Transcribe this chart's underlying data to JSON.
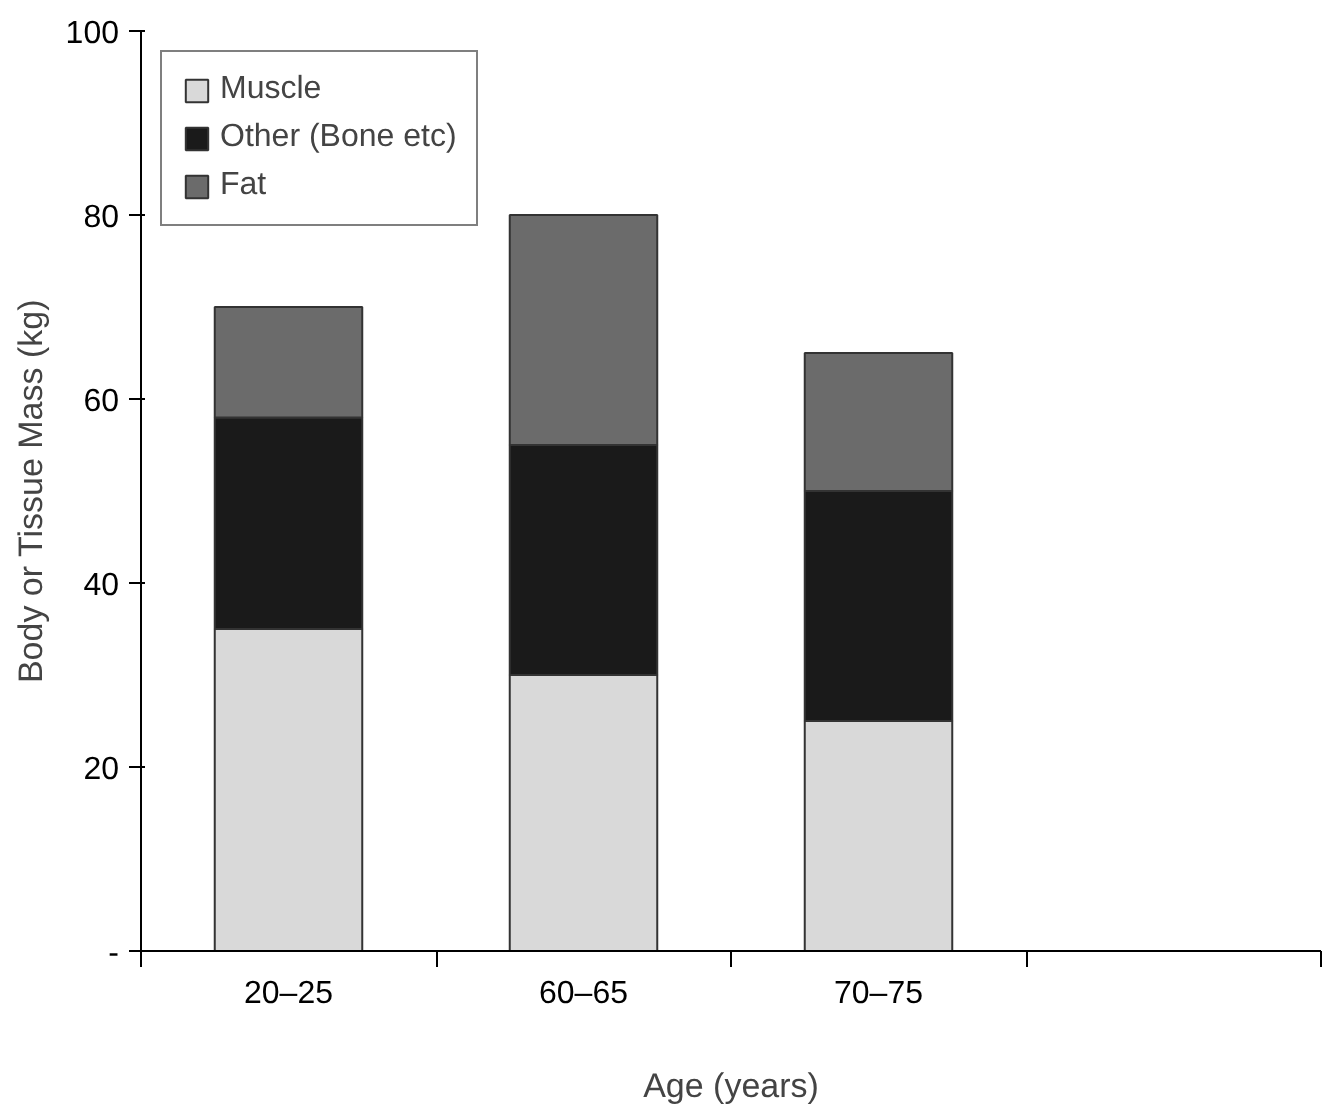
{
  "chart_data": {
    "type": "bar",
    "stacked": true,
    "xlabel": "Age (years)",
    "ylabel": "Body or Tissue Mass (kg)",
    "categories": [
      "20–25",
      "60–65",
      "70–75",
      null
    ],
    "series": [
      {
        "name": "Muscle",
        "color": "#d9d9d9",
        "values": [
          35,
          30,
          25,
          null
        ]
      },
      {
        "name": "Other (Bone etc)",
        "color": "#1a1a1a",
        "values": [
          23,
          25,
          25,
          null
        ]
      },
      {
        "name": "Fat",
        "color": "#6b6b6b",
        "values": [
          12,
          25,
          15,
          null
        ]
      }
    ],
    "ylim": [
      0,
      100
    ],
    "yticks": [
      {
        "value": 0,
        "label": "-"
      },
      20,
      40,
      60,
      80,
      100
    ],
    "grid": false,
    "legend": "top left"
  }
}
